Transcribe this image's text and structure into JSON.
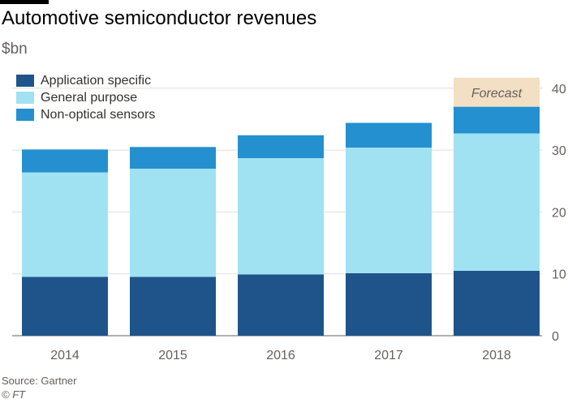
{
  "header": {
    "title": "Automotive semiconductor revenues",
    "unit": "$bn"
  },
  "footer": {
    "source": "Source: Gartner",
    "credit": "© FT"
  },
  "colors": {
    "application_specific": "#1f548b",
    "general_purpose": "#a0e2f2",
    "non_optical_sensors": "#2490cf",
    "forecast": "#f2dfc4",
    "grid": "#e2dedb",
    "text": "#66605c"
  },
  "chart_data": {
    "type": "bar",
    "stacked": true,
    "categories": [
      "2014",
      "2015",
      "2016",
      "2017",
      "2018"
    ],
    "series": [
      {
        "name": "Application specific",
        "values": [
          9.5,
          9.5,
          9.9,
          10.1,
          10.5
        ]
      },
      {
        "name": "General purpose",
        "values": [
          16.9,
          17.5,
          18.8,
          20.3,
          22.2
        ]
      },
      {
        "name": "Non-optical sensors",
        "values": [
          3.7,
          3.5,
          3.7,
          4.0,
          4.3
        ]
      }
    ],
    "forecast": {
      "label": "Forecast",
      "category": "2018",
      "top": 41.7
    },
    "ylim": [
      0,
      42
    ],
    "yticks": [
      0,
      10,
      20,
      30,
      40
    ],
    "grid": true,
    "legend": "top-left",
    "axis_side": "right"
  }
}
